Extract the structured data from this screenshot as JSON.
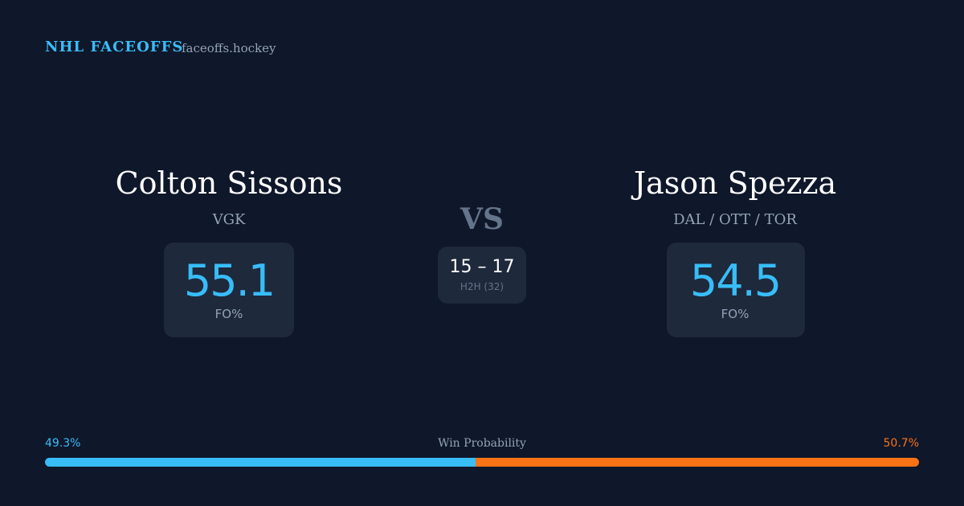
{
  "header": {
    "title": "NHL FACEOFFS",
    "site": "faceoffs.hockey"
  },
  "players": [
    {
      "name": "Colton Sissons",
      "team": "VGK",
      "fo_pct": 55.1,
      "fo_label": "FO%"
    },
    {
      "name": "Jason Spezza",
      "team": "DAL / OTT / TOR",
      "fo_pct": 54.5,
      "fo_label": "FO%"
    }
  ],
  "versus": "VS",
  "h2h": {
    "record": "15 – 17",
    "label": "H2H (32)"
  },
  "win_probability": {
    "label": "Win Probability",
    "values": [
      49.3,
      50.7
    ],
    "value_labels": [
      "49.3%",
      "50.7%"
    ],
    "colors": [
      "#38bdf8",
      "#f97316"
    ]
  }
}
